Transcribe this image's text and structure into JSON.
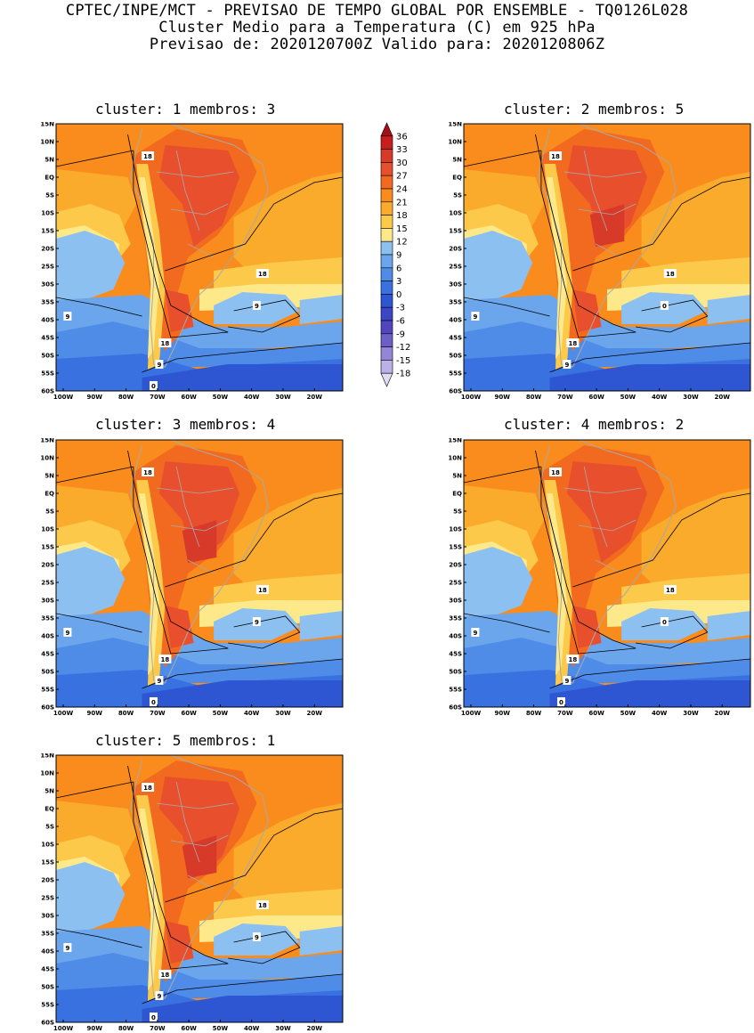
{
  "header": {
    "line1": "CPTEC/INPE/MCT - PREVISAO DE TEMPO GLOBAL POR ENSEMBLE - TQ0126L028",
    "line2": "Cluster Medio para a Temperatura (C) em 925 hPa",
    "line3": "Previsao de: 2020120700Z   Valido para: 2020120806Z"
  },
  "panels": [
    {
      "title": "cluster: 1   membros: 3",
      "contours": [
        "18",
        "18",
        "18",
        "9",
        "9",
        "9",
        "0"
      ],
      "variant": 1
    },
    {
      "title": "cluster: 2   membros: 5",
      "contours": [
        "18",
        "18",
        "18",
        "9",
        "9",
        "0"
      ],
      "variant": 2
    },
    {
      "title": "cluster: 3   membros: 4",
      "contours": [
        "18",
        "18",
        "18",
        "9",
        "9",
        "9",
        "0"
      ],
      "variant": 3
    },
    {
      "title": "cluster: 4   membros: 2",
      "contours": [
        "18",
        "18",
        "18",
        "9",
        "9",
        "0",
        "0"
      ],
      "variant": 4
    },
    {
      "title": "cluster: 5   membros: 1",
      "contours": [
        "18",
        "18",
        "18",
        "9",
        "9",
        "9",
        "0"
      ],
      "variant": 5
    }
  ],
  "lat_labels": [
    "15N",
    "10N",
    "5N",
    "EQ",
    "5S",
    "10S",
    "15S",
    "20S",
    "25S",
    "30S",
    "35S",
    "40S",
    "45S",
    "50S",
    "55S",
    "60S"
  ],
  "lon_labels": [
    "100W",
    "90W",
    "80W",
    "70W",
    "60W",
    "50W",
    "40W",
    "30W",
    "20W"
  ],
  "colorbar": {
    "labels": [
      "36",
      "33",
      "30",
      "27",
      "24",
      "21",
      "18",
      "15",
      "12",
      "9",
      "6",
      "3",
      "0",
      "-3",
      "-6",
      "-9",
      "-12",
      "-15",
      "-18"
    ],
    "colors": [
      "#a50f15",
      "#c81e1e",
      "#d83a2a",
      "#e8502d",
      "#f26a1f",
      "#f98c1c",
      "#fbab2c",
      "#fcc94a",
      "#fde98a",
      "#8cc0f0",
      "#6ba6ec",
      "#4f8ce8",
      "#3972e0",
      "#2f56d2",
      "#3b47c4",
      "#5246be",
      "#6c5fc8",
      "#9486d6",
      "#bdb0e6",
      "#e2dbf4"
    ],
    "unit": "C"
  }
}
